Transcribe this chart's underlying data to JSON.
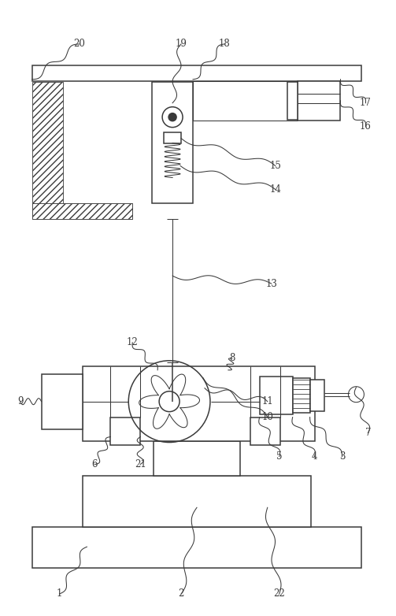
{
  "bg_color": "#ffffff",
  "line_color": "#3a3a3a",
  "figsize": [
    5.03,
    7.82
  ],
  "dpi": 100,
  "lw": 1.1,
  "lw_thin": 0.75,
  "lw_hatch": 0.6
}
